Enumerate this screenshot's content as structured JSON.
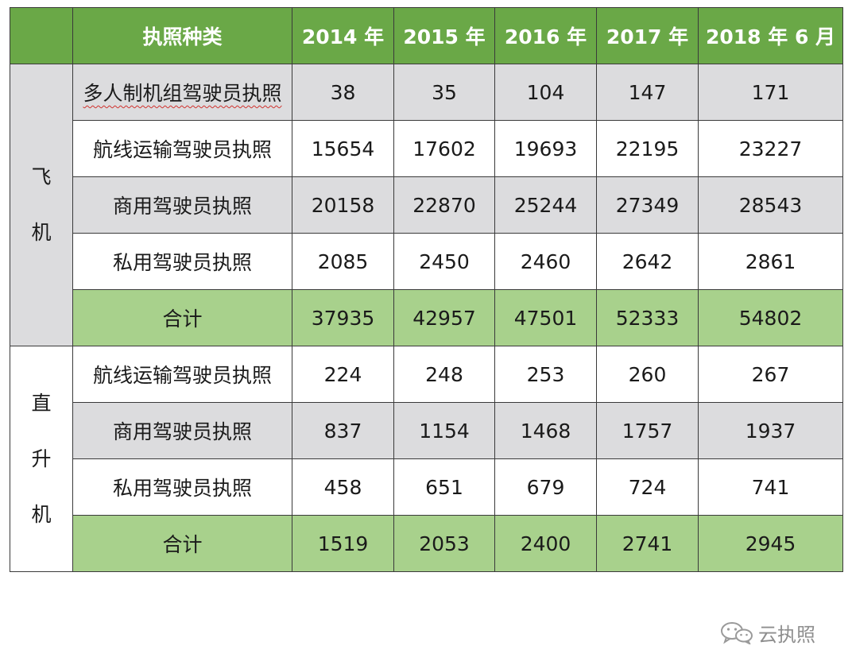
{
  "header": {
    "corner": "",
    "type_label": "执照种类",
    "years": [
      "2014 年",
      "2015 年",
      "2016 年",
      "2017 年",
      "2018 年 6 月"
    ]
  },
  "groups": {
    "airplane": {
      "label_chars": [
        "飞",
        "机"
      ]
    },
    "helicopter": {
      "label_chars": [
        "直",
        "升",
        "机"
      ]
    }
  },
  "rows": [
    {
      "type": "多人制机组驾驶员执照",
      "values": [
        "38",
        "35",
        "104",
        "147",
        "171"
      ]
    },
    {
      "type": "航线运输驾驶员执照",
      "values": [
        "15654",
        "17602",
        "19693",
        "22195",
        "23227"
      ]
    },
    {
      "type": "商用驾驶员执照",
      "values": [
        "20158",
        "22870",
        "25244",
        "27349",
        "28543"
      ]
    },
    {
      "type": "私用驾驶员执照",
      "values": [
        "2085",
        "2450",
        "2460",
        "2642",
        "2861"
      ]
    },
    {
      "type": "合计",
      "values": [
        "37935",
        "42957",
        "47501",
        "52333",
        "54802"
      ]
    },
    {
      "type": "航线运输驾驶员执照",
      "values": [
        "224",
        "248",
        "253",
        "260",
        "267"
      ]
    },
    {
      "type": "商用驾驶员执照",
      "values": [
        "837",
        "1154",
        "1468",
        "1757",
        "1937"
      ]
    },
    {
      "type": "私用驾驶员执照",
      "values": [
        "458",
        "651",
        "679",
        "724",
        "741"
      ]
    },
    {
      "type": "合计",
      "values": [
        "1519",
        "2053",
        "2400",
        "2741",
        "2945"
      ]
    }
  ],
  "colors": {
    "header_green": "#6aa847",
    "total_green": "#a8d18c",
    "row_gray": "#dcdcde"
  },
  "watermark": {
    "text": "云执照",
    "icon": "wechat-icon"
  }
}
